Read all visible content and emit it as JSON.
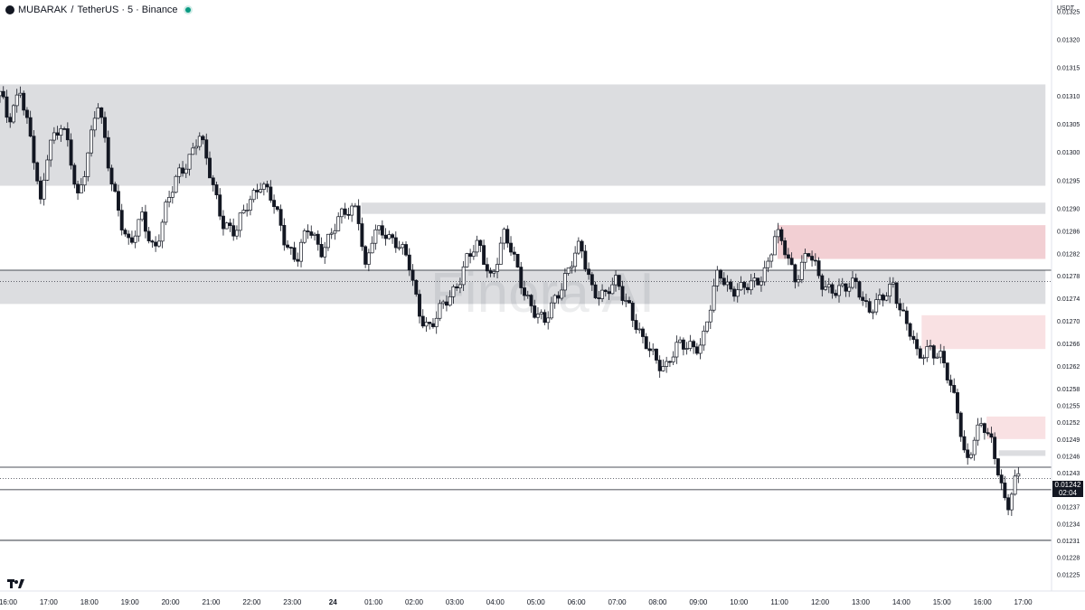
{
  "header": {
    "symbol": "MUBARAK",
    "separator": "/",
    "quote": "TetherUS",
    "interval": "5",
    "exchange": "Binance"
  },
  "axis": {
    "currency": "USDT"
  },
  "watermark": "Finora AI",
  "current": {
    "price": "0.01242",
    "countdown": "02:04"
  },
  "chart_data": {
    "type": "candlestick",
    "title": "MUBARAK / TetherUS · 5 · Binance",
    "xlabel": "",
    "ylabel": "USDT",
    "ylim": [
      0.01222,
      0.01327
    ],
    "y_ticks": [
      0.01325,
      0.0132,
      0.01315,
      0.0131,
      0.01305,
      0.013,
      0.01295,
      0.0129,
      0.01286,
      0.01282,
      0.01278,
      0.01274,
      0.0127,
      0.01266,
      0.01262,
      0.01258,
      0.01255,
      0.01252,
      0.01249,
      0.01246,
      0.01243,
      0.0124,
      0.01237,
      0.01234,
      0.01231,
      0.01228,
      0.01225
    ],
    "y_tick_labels": [
      "0.01325",
      "0.01320",
      "0.01315",
      "0.01310",
      "0.01305",
      "0.01300",
      "0.01295",
      "0.01290",
      "0.01286",
      "0.01282",
      "0.01278",
      "0.01274",
      "0.01270",
      "0.01266",
      "0.01262",
      "0.01258",
      "0.01255",
      "0.01252",
      "0.01249",
      "0.01246",
      "0.01243",
      "0.01240",
      "0.01237",
      "0.01234",
      "0.01231",
      "0.01228",
      "0.01225"
    ],
    "x_range_hours": [
      -0.2,
      25.7
    ],
    "x_ticks": [
      {
        "h": 0,
        "label": "16:00"
      },
      {
        "h": 1,
        "label": "17:00"
      },
      {
        "h": 2,
        "label": "18:00"
      },
      {
        "h": 3,
        "label": "19:00"
      },
      {
        "h": 4,
        "label": "20:00"
      },
      {
        "h": 5,
        "label": "21:00"
      },
      {
        "h": 6,
        "label": "22:00"
      },
      {
        "h": 7,
        "label": "23:00"
      },
      {
        "h": 8,
        "label": "24",
        "bold": true
      },
      {
        "h": 9,
        "label": "01:00"
      },
      {
        "h": 10,
        "label": "02:00"
      },
      {
        "h": 11,
        "label": "03:00"
      },
      {
        "h": 12,
        "label": "04:00"
      },
      {
        "h": 13,
        "label": "05:00"
      },
      {
        "h": 14,
        "label": "06:00"
      },
      {
        "h": 15,
        "label": "07:00"
      },
      {
        "h": 16,
        "label": "08:00"
      },
      {
        "h": 17,
        "label": "09:00"
      },
      {
        "h": 18,
        "label": "10:00"
      },
      {
        "h": 19,
        "label": "11:00"
      },
      {
        "h": 20,
        "label": "12:00"
      },
      {
        "h": 21,
        "label": "13:00"
      },
      {
        "h": 22,
        "label": "14:00"
      },
      {
        "h": 23,
        "label": "15:00"
      },
      {
        "h": 24,
        "label": "16:00"
      },
      {
        "h": 25,
        "label": "17:00"
      }
    ],
    "zones": [
      {
        "name": "grey-zone-top",
        "y1": 0.01312,
        "y2": 0.01294,
        "h1": -0.2,
        "h2": 25.55,
        "color": "#dcdde0"
      },
      {
        "name": "grey-zone-thin",
        "y1": 0.01291,
        "y2": 0.01289,
        "h1": 8.7,
        "h2": 25.55,
        "color": "#dcdde0"
      },
      {
        "name": "grey-zone-mid",
        "y1": 0.01279,
        "y2": 0.01273,
        "h1": -0.2,
        "h2": 25.55,
        "color": "#dcdde0"
      },
      {
        "name": "red-zone-upper",
        "y1": 0.01287,
        "y2": 0.01281,
        "h1": 18.95,
        "h2": 25.55,
        "color": "#f2cfd3"
      },
      {
        "name": "red-zone-middle",
        "y1": 0.01271,
        "y2": 0.01265,
        "h1": 22.5,
        "h2": 25.55,
        "color": "#f9e1e3"
      },
      {
        "name": "red-zone-lower",
        "y1": 0.01253,
        "y2": 0.01249,
        "h1": 24.1,
        "h2": 25.55,
        "color": "#f9e1e3"
      },
      {
        "name": "grey-zone-lower",
        "y1": 0.01247,
        "y2": 0.01246,
        "h1": 24.4,
        "h2": 25.55,
        "color": "#dcdde0"
      }
    ],
    "lines": [
      {
        "y": 0.01279,
        "style": "solid"
      },
      {
        "y": 0.01277,
        "style": "dotted"
      },
      {
        "y": 0.01244,
        "style": "solid"
      },
      {
        "y": 0.01242,
        "style": "dotted"
      },
      {
        "y": 0.0124,
        "style": "solid"
      },
      {
        "y": 0.01231,
        "style": "solid"
      }
    ],
    "series": [
      {
        "h": -0.2,
        "close": 0.0131
      },
      {
        "h": 0.0,
        "close": 0.01305
      },
      {
        "h": 0.3,
        "close": 0.01312
      },
      {
        "h": 0.6,
        "close": 0.013
      },
      {
        "h": 0.8,
        "close": 0.0129
      },
      {
        "h": 1.0,
        "close": 0.01302
      },
      {
        "h": 1.3,
        "close": 0.01305
      },
      {
        "h": 1.5,
        "close": 0.013
      },
      {
        "h": 1.7,
        "close": 0.01291
      },
      {
        "h": 1.9,
        "close": 0.01298
      },
      {
        "h": 2.2,
        "close": 0.01309
      },
      {
        "h": 2.5,
        "close": 0.01296
      },
      {
        "h": 2.8,
        "close": 0.01288
      },
      {
        "h": 3.0,
        "close": 0.01283
      },
      {
        "h": 3.3,
        "close": 0.01288
      },
      {
        "h": 3.6,
        "close": 0.01283
      },
      {
        "h": 3.9,
        "close": 0.0129
      },
      {
        "h": 4.2,
        "close": 0.01296
      },
      {
        "h": 4.5,
        "close": 0.013
      },
      {
        "h": 4.7,
        "close": 0.01303
      },
      {
        "h": 5.0,
        "close": 0.01295
      },
      {
        "h": 5.3,
        "close": 0.01288
      },
      {
        "h": 5.6,
        "close": 0.01285
      },
      {
        "h": 5.9,
        "close": 0.01291
      },
      {
        "h": 6.2,
        "close": 0.01295
      },
      {
        "h": 6.5,
        "close": 0.01291
      },
      {
        "h": 6.8,
        "close": 0.01285
      },
      {
        "h": 7.1,
        "close": 0.01281
      },
      {
        "h": 7.4,
        "close": 0.01286
      },
      {
        "h": 7.7,
        "close": 0.01283
      },
      {
        "h": 8.0,
        "close": 0.01286
      },
      {
        "h": 8.3,
        "close": 0.01289
      },
      {
        "h": 8.6,
        "close": 0.01291
      },
      {
        "h": 8.8,
        "close": 0.01279
      },
      {
        "h": 9.0,
        "close": 0.01285
      },
      {
        "h": 9.3,
        "close": 0.01286
      },
      {
        "h": 9.6,
        "close": 0.01284
      },
      {
        "h": 9.9,
        "close": 0.01279
      },
      {
        "h": 10.1,
        "close": 0.01272
      },
      {
        "h": 10.4,
        "close": 0.01269
      },
      {
        "h": 10.7,
        "close": 0.01272
      },
      {
        "h": 11.0,
        "close": 0.01276
      },
      {
        "h": 11.3,
        "close": 0.01281
      },
      {
        "h": 11.6,
        "close": 0.01283
      },
      {
        "h": 11.9,
        "close": 0.01278
      },
      {
        "h": 12.2,
        "close": 0.01285
      },
      {
        "h": 12.4,
        "close": 0.01282
      },
      {
        "h": 12.7,
        "close": 0.01276
      },
      {
        "h": 13.0,
        "close": 0.01271
      },
      {
        "h": 13.2,
        "close": 0.01269
      },
      {
        "h": 13.5,
        "close": 0.01275
      },
      {
        "h": 13.8,
        "close": 0.01279
      },
      {
        "h": 14.1,
        "close": 0.01283
      },
      {
        "h": 14.4,
        "close": 0.01276
      },
      {
        "h": 14.7,
        "close": 0.01274
      },
      {
        "h": 15.0,
        "close": 0.01277
      },
      {
        "h": 15.3,
        "close": 0.01273
      },
      {
        "h": 15.6,
        "close": 0.01266
      },
      {
        "h": 15.9,
        "close": 0.01264
      },
      {
        "h": 16.2,
        "close": 0.01262
      },
      {
        "h": 16.5,
        "close": 0.01265
      },
      {
        "h": 16.8,
        "close": 0.01266
      },
      {
        "h": 17.1,
        "close": 0.01266
      },
      {
        "h": 17.3,
        "close": 0.01272
      },
      {
        "h": 17.5,
        "close": 0.01279
      },
      {
        "h": 17.8,
        "close": 0.01276
      },
      {
        "h": 18.1,
        "close": 0.01275
      },
      {
        "h": 18.4,
        "close": 0.01277
      },
      {
        "h": 18.7,
        "close": 0.0128
      },
      {
        "h": 18.9,
        "close": 0.01285
      },
      {
        "h": 19.1,
        "close": 0.01283
      },
      {
        "h": 19.4,
        "close": 0.01278
      },
      {
        "h": 19.7,
        "close": 0.01282
      },
      {
        "h": 20.0,
        "close": 0.01277
      },
      {
        "h": 20.3,
        "close": 0.01276
      },
      {
        "h": 20.6,
        "close": 0.01275
      },
      {
        "h": 20.9,
        "close": 0.01277
      },
      {
        "h": 21.2,
        "close": 0.01272
      },
      {
        "h": 21.5,
        "close": 0.01273
      },
      {
        "h": 21.8,
        "close": 0.01277
      },
      {
        "h": 22.0,
        "close": 0.01272
      },
      {
        "h": 22.2,
        "close": 0.01268
      },
      {
        "h": 22.4,
        "close": 0.01263
      },
      {
        "h": 22.7,
        "close": 0.01266
      },
      {
        "h": 23.0,
        "close": 0.01263
      },
      {
        "h": 23.2,
        "close": 0.01258
      },
      {
        "h": 23.4,
        "close": 0.01254
      },
      {
        "h": 23.6,
        "close": 0.01245
      },
      {
        "h": 23.8,
        "close": 0.01249
      },
      {
        "h": 24.0,
        "close": 0.01251
      },
      {
        "h": 24.2,
        "close": 0.01249
      },
      {
        "h": 24.4,
        "close": 0.01244
      },
      {
        "h": 24.6,
        "close": 0.01236
      },
      {
        "h": 24.75,
        "close": 0.0124
      },
      {
        "h": 24.9,
        "close": 0.01242
      }
    ]
  }
}
